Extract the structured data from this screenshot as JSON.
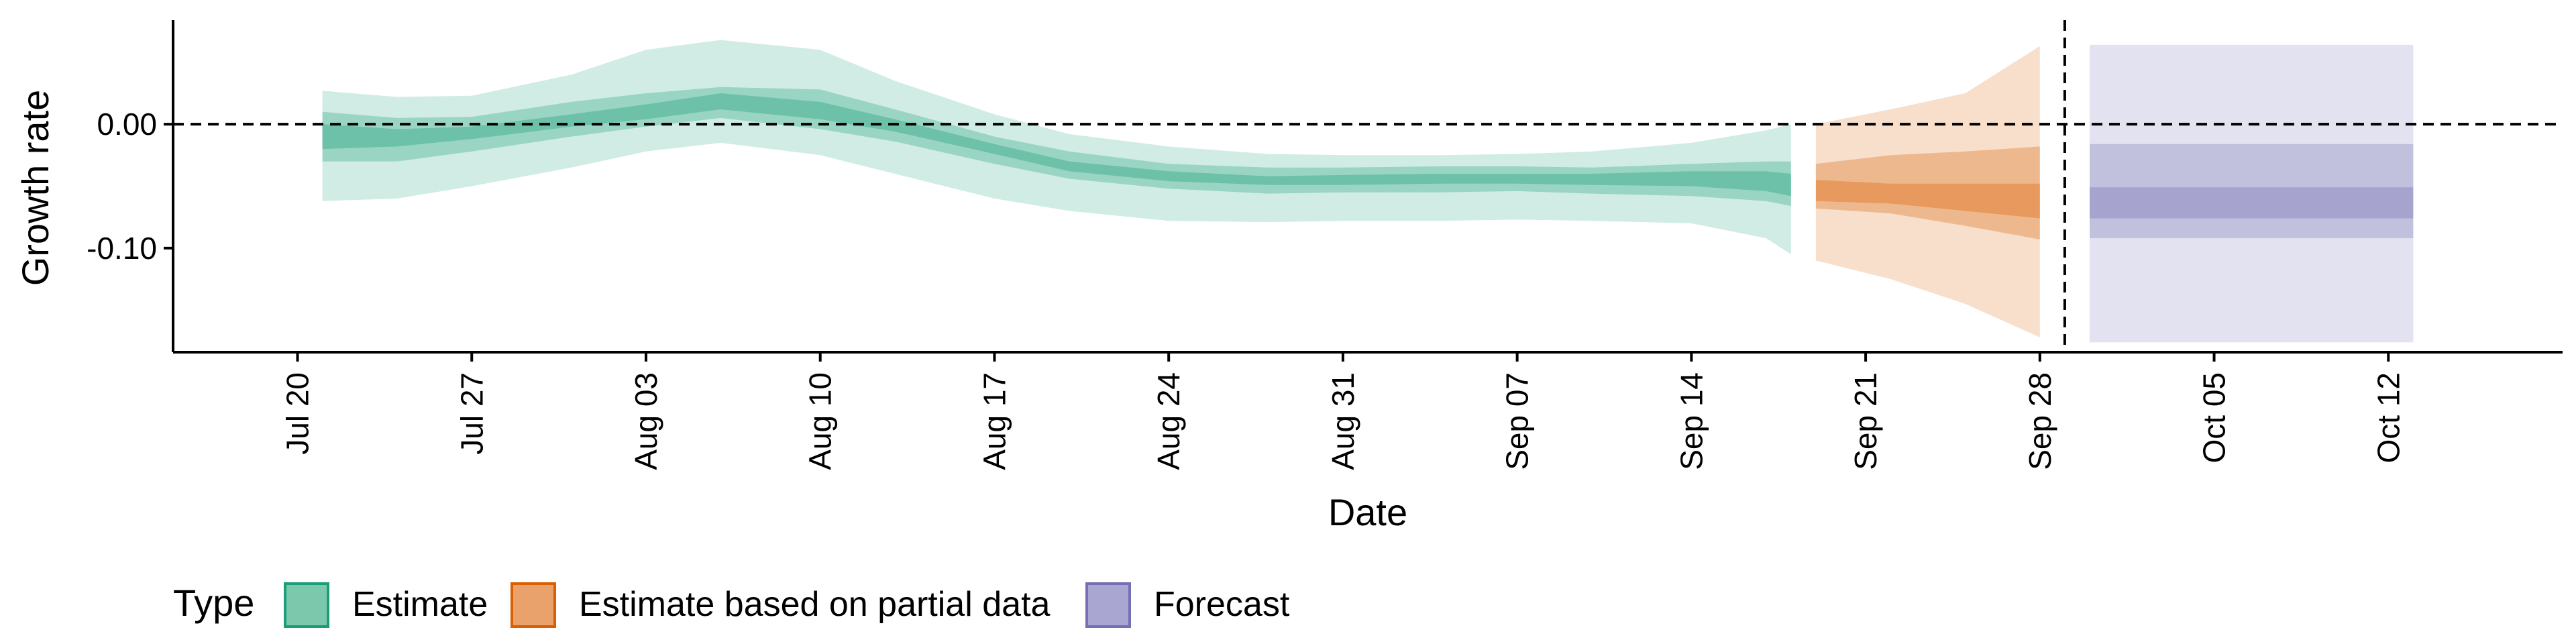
{
  "chart_data": {
    "type": "area",
    "xlabel": "Date",
    "ylabel": "Growth rate",
    "x_range": [
      "2020-07-15",
      "2020-10-19"
    ],
    "ylim": [
      -0.184,
      0.084
    ],
    "x_ticks": [
      {
        "date": "2020-07-20",
        "label": "Jul 20"
      },
      {
        "date": "2020-07-27",
        "label": "Jul 27"
      },
      {
        "date": "2020-08-03",
        "label": "Aug 03"
      },
      {
        "date": "2020-08-10",
        "label": "Aug 10"
      },
      {
        "date": "2020-08-17",
        "label": "Aug 17"
      },
      {
        "date": "2020-08-24",
        "label": "Aug 24"
      },
      {
        "date": "2020-08-31",
        "label": "Aug 31"
      },
      {
        "date": "2020-09-07",
        "label": "Sep 07"
      },
      {
        "date": "2020-09-14",
        "label": "Sep 14"
      },
      {
        "date": "2020-09-21",
        "label": "Sep 21"
      },
      {
        "date": "2020-09-28",
        "label": "Sep 28"
      },
      {
        "date": "2020-10-05",
        "label": "Oct 05"
      },
      {
        "date": "2020-10-12",
        "label": "Oct 12"
      }
    ],
    "y_ticks": [
      {
        "value": 0.0,
        "label": "0.00"
      },
      {
        "value": -0.1,
        "label": "-0.10"
      }
    ],
    "reference_lines": [
      {
        "axis": "y",
        "value": 0.0,
        "style": "dashed"
      },
      {
        "axis": "x",
        "value": "2020-09-29",
        "style": "dashed"
      }
    ],
    "grid": false,
    "legend": {
      "title": "Type",
      "position": "bottom-left",
      "entries": [
        {
          "label": "Estimate",
          "fill": "#7cc8ad",
          "stroke": "#1b9e77"
        },
        {
          "label": "Estimate based on partial data",
          "fill": "#e9a26c",
          "stroke": "#d95f02"
        },
        {
          "label": "Forecast",
          "fill": "#aaa6d2",
          "stroke": "#7570b3"
        }
      ]
    },
    "series": [
      {
        "name": "Estimate",
        "color": "#1b9e77",
        "points": [
          {
            "x": "2020-07-21",
            "outer": [
              -0.062,
              0.027
            ],
            "mid": [
              -0.03,
              0.01
            ],
            "inner": [
              -0.02,
              0.0
            ]
          },
          {
            "x": "2020-07-24",
            "outer": [
              -0.06,
              0.022
            ],
            "mid": [
              -0.03,
              0.005
            ],
            "inner": [
              -0.018,
              -0.004
            ]
          },
          {
            "x": "2020-07-27",
            "outer": [
              -0.05,
              0.023
            ],
            "mid": [
              -0.022,
              0.006
            ],
            "inner": [
              -0.012,
              -0.002
            ]
          },
          {
            "x": "2020-07-31",
            "outer": [
              -0.035,
              0.04
            ],
            "mid": [
              -0.01,
              0.018
            ],
            "inner": [
              -0.002,
              0.008
            ]
          },
          {
            "x": "2020-08-03",
            "outer": [
              -0.022,
              0.06
            ],
            "mid": [
              -0.002,
              0.025
            ],
            "inner": [
              0.004,
              0.016
            ]
          },
          {
            "x": "2020-08-06",
            "outer": [
              -0.015,
              0.068
            ],
            "mid": [
              0.005,
              0.03
            ],
            "inner": [
              0.012,
              0.025
            ]
          },
          {
            "x": "2020-08-10",
            "outer": [
              -0.025,
              0.06
            ],
            "mid": [
              -0.004,
              0.028
            ],
            "inner": [
              0.004,
              0.018
            ]
          },
          {
            "x": "2020-08-13",
            "outer": [
              -0.04,
              0.035
            ],
            "mid": [
              -0.014,
              0.012
            ],
            "inner": [
              -0.006,
              0.004
            ]
          },
          {
            "x": "2020-08-17",
            "outer": [
              -0.06,
              0.008
            ],
            "mid": [
              -0.032,
              -0.01
            ],
            "inner": [
              -0.024,
              -0.016
            ]
          },
          {
            "x": "2020-08-20",
            "outer": [
              -0.07,
              -0.008
            ],
            "mid": [
              -0.044,
              -0.022
            ],
            "inner": [
              -0.038,
              -0.03
            ]
          },
          {
            "x": "2020-08-24",
            "outer": [
              -0.078,
              -0.018
            ],
            "mid": [
              -0.052,
              -0.032
            ],
            "inner": [
              -0.046,
              -0.038
            ]
          },
          {
            "x": "2020-08-28",
            "outer": [
              -0.079,
              -0.024
            ],
            "mid": [
              -0.056,
              -0.035
            ],
            "inner": [
              -0.049,
              -0.042
            ]
          },
          {
            "x": "2020-08-31",
            "outer": [
              -0.078,
              -0.025
            ],
            "mid": [
              -0.055,
              -0.035
            ],
            "inner": [
              -0.049,
              -0.041
            ]
          },
          {
            "x": "2020-09-04",
            "outer": [
              -0.078,
              -0.025
            ],
            "mid": [
              -0.055,
              -0.034
            ],
            "inner": [
              -0.048,
              -0.04
            ]
          },
          {
            "x": "2020-09-07",
            "outer": [
              -0.077,
              -0.024
            ],
            "mid": [
              -0.054,
              -0.034
            ],
            "inner": [
              -0.048,
              -0.04
            ]
          },
          {
            "x": "2020-09-10",
            "outer": [
              -0.078,
              -0.022
            ],
            "mid": [
              -0.056,
              -0.035
            ],
            "inner": [
              -0.049,
              -0.04
            ]
          },
          {
            "x": "2020-09-14",
            "outer": [
              -0.08,
              -0.015
            ],
            "mid": [
              -0.058,
              -0.032
            ],
            "inner": [
              -0.05,
              -0.038
            ]
          },
          {
            "x": "2020-09-17",
            "outer": [
              -0.092,
              -0.005
            ],
            "mid": [
              -0.062,
              -0.03
            ],
            "inner": [
              -0.054,
              -0.038
            ]
          },
          {
            "x": "2020-09-18",
            "outer": [
              -0.105,
              0.0
            ],
            "mid": [
              -0.066,
              -0.03
            ],
            "inner": [
              -0.058,
              -0.04
            ]
          }
        ]
      },
      {
        "name": "Estimate based on partial data",
        "color": "#d95f02",
        "points": [
          {
            "x": "2020-09-19",
            "outer": [
              -0.11,
              0.0
            ],
            "mid": [
              -0.068,
              -0.032
            ],
            "inner": [
              -0.062,
              -0.045
            ]
          },
          {
            "x": "2020-09-22",
            "outer": [
              -0.125,
              0.012
            ],
            "mid": [
              -0.072,
              -0.025
            ],
            "inner": [
              -0.064,
              -0.048
            ]
          },
          {
            "x": "2020-09-25",
            "outer": [
              -0.145,
              0.025
            ],
            "mid": [
              -0.082,
              -0.022
            ],
            "inner": [
              -0.07,
              -0.048
            ]
          },
          {
            "x": "2020-09-28",
            "outer": [
              -0.172,
              0.063
            ],
            "mid": [
              -0.093,
              -0.018
            ],
            "inner": [
              -0.076,
              -0.048
            ]
          }
        ]
      },
      {
        "name": "Forecast",
        "color": "#7570b3",
        "points": [
          {
            "x": "2020-09-30",
            "outer": [
              -0.176,
              0.064
            ],
            "mid": [
              -0.092,
              -0.016
            ],
            "inner": [
              -0.076,
              -0.051
            ]
          },
          {
            "x": "2020-10-13",
            "outer": [
              -0.176,
              0.064
            ],
            "mid": [
              -0.092,
              -0.016
            ],
            "inner": [
              -0.076,
              -0.051
            ]
          }
        ]
      }
    ]
  }
}
